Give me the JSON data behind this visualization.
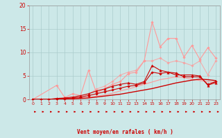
{
  "background_color": "#cce8e8",
  "grid_color": "#aacccc",
  "xlabel": "Vent moyen/en rafales ( km/h )",
  "xlabel_color": "#cc0000",
  "xlim": [
    0,
    23
  ],
  "ylim": [
    0,
    20
  ],
  "xticks": [
    0,
    1,
    2,
    3,
    4,
    5,
    6,
    7,
    8,
    9,
    10,
    11,
    12,
    13,
    14,
    15,
    16,
    17,
    18,
    19,
    20,
    21,
    22,
    23
  ],
  "yticks": [
    0,
    5,
    10,
    15,
    20
  ],
  "tick_color": "#cc0000",
  "lines": [
    {
      "x": [
        0,
        1,
        2,
        3,
        4,
        5,
        6,
        7,
        8,
        9,
        10,
        11,
        12,
        13,
        14,
        15,
        16,
        17,
        18,
        19,
        20,
        21,
        22,
        23
      ],
      "y": [
        0,
        0,
        0,
        0.05,
        0.1,
        0.15,
        0.2,
        0.3,
        0.5,
        0.7,
        0.9,
        1.1,
        1.4,
        1.7,
        2.0,
        2.3,
        2.7,
        3.1,
        3.5,
        3.8,
        4.1,
        4.3,
        4.2,
        4.0
      ],
      "color": "#cc0000",
      "linewidth": 1.0,
      "marker": null,
      "alpha": 1.0,
      "zorder": 5
    },
    {
      "x": [
        0,
        1,
        2,
        3,
        4,
        5,
        6,
        7,
        8,
        9,
        10,
        11,
        12,
        13,
        14,
        15,
        16,
        17,
        18,
        19,
        20,
        21,
        22,
        23
      ],
      "y": [
        0,
        0,
        0,
        0.1,
        0.2,
        0.3,
        0.5,
        0.8,
        1.2,
        1.6,
        2.0,
        2.4,
        2.8,
        3.0,
        3.5,
        5.8,
        5.5,
        5.8,
        5.6,
        4.8,
        4.8,
        4.8,
        3.2,
        3.8
      ],
      "color": "#cc0000",
      "linewidth": 0.8,
      "marker": "D",
      "markersize": 1.8,
      "alpha": 1.0,
      "zorder": 5
    },
    {
      "x": [
        0,
        1,
        2,
        3,
        4,
        5,
        6,
        7,
        8,
        9,
        10,
        11,
        12,
        13,
        14,
        15,
        16,
        17,
        18,
        19,
        20,
        21,
        22,
        23
      ],
      "y": [
        0,
        0,
        0,
        0.2,
        0.3,
        0.5,
        0.8,
        1.2,
        1.8,
        2.2,
        2.8,
        3.2,
        3.5,
        3.2,
        3.8,
        7.2,
        6.2,
        5.8,
        5.2,
        5.2,
        5.2,
        5.0,
        3.0,
        3.6
      ],
      "color": "#cc0000",
      "linewidth": 0.8,
      "marker": "^",
      "markersize": 2.5,
      "alpha": 1.0,
      "zorder": 5
    },
    {
      "x": [
        0,
        3,
        4,
        5,
        6,
        7,
        8,
        9,
        10,
        11,
        12,
        13,
        14,
        15,
        16,
        17,
        18,
        19,
        20,
        21,
        22,
        23
      ],
      "y": [
        0,
        3.0,
        0.4,
        1.2,
        0.8,
        6.2,
        1.4,
        2.2,
        3.2,
        3.8,
        5.5,
        5.8,
        8.2,
        16.5,
        11.2,
        13.0,
        13.0,
        9.0,
        11.5,
        8.5,
        11.0,
        8.8
      ],
      "color": "#ff9999",
      "linewidth": 0.8,
      "marker": "D",
      "markersize": 1.8,
      "alpha": 1.0,
      "zorder": 3
    },
    {
      "x": [
        0,
        1,
        2,
        3,
        4,
        5,
        6,
        7,
        8,
        9,
        10,
        11,
        12,
        13,
        14,
        15,
        16,
        17,
        18,
        19,
        20,
        21,
        22,
        23
      ],
      "y": [
        0,
        0,
        0,
        0,
        0,
        0.15,
        0.25,
        0.45,
        0.7,
        0.9,
        1.3,
        1.8,
        2.2,
        2.7,
        3.2,
        3.7,
        4.2,
        4.5,
        4.8,
        4.6,
        4.3,
        4.0,
        3.8,
        3.6
      ],
      "color": "#ff9999",
      "linewidth": 0.8,
      "marker": null,
      "alpha": 1.0,
      "zorder": 3
    },
    {
      "x": [
        0,
        1,
        2,
        3,
        4,
        5,
        6,
        7,
        8,
        9,
        10,
        11,
        12,
        13,
        14,
        15,
        16,
        17,
        18,
        19,
        20,
        21,
        22,
        23
      ],
      "y": [
        0,
        0,
        0,
        0,
        0,
        0.15,
        0.45,
        1.0,
        2.2,
        2.8,
        3.8,
        5.2,
        5.8,
        6.2,
        8.2,
        8.2,
        8.8,
        7.8,
        8.2,
        7.8,
        7.2,
        8.2,
        5.2,
        8.2
      ],
      "color": "#ff9999",
      "linewidth": 0.8,
      "marker": "D",
      "markersize": 1.8,
      "alpha": 0.75,
      "zorder": 3
    }
  ]
}
